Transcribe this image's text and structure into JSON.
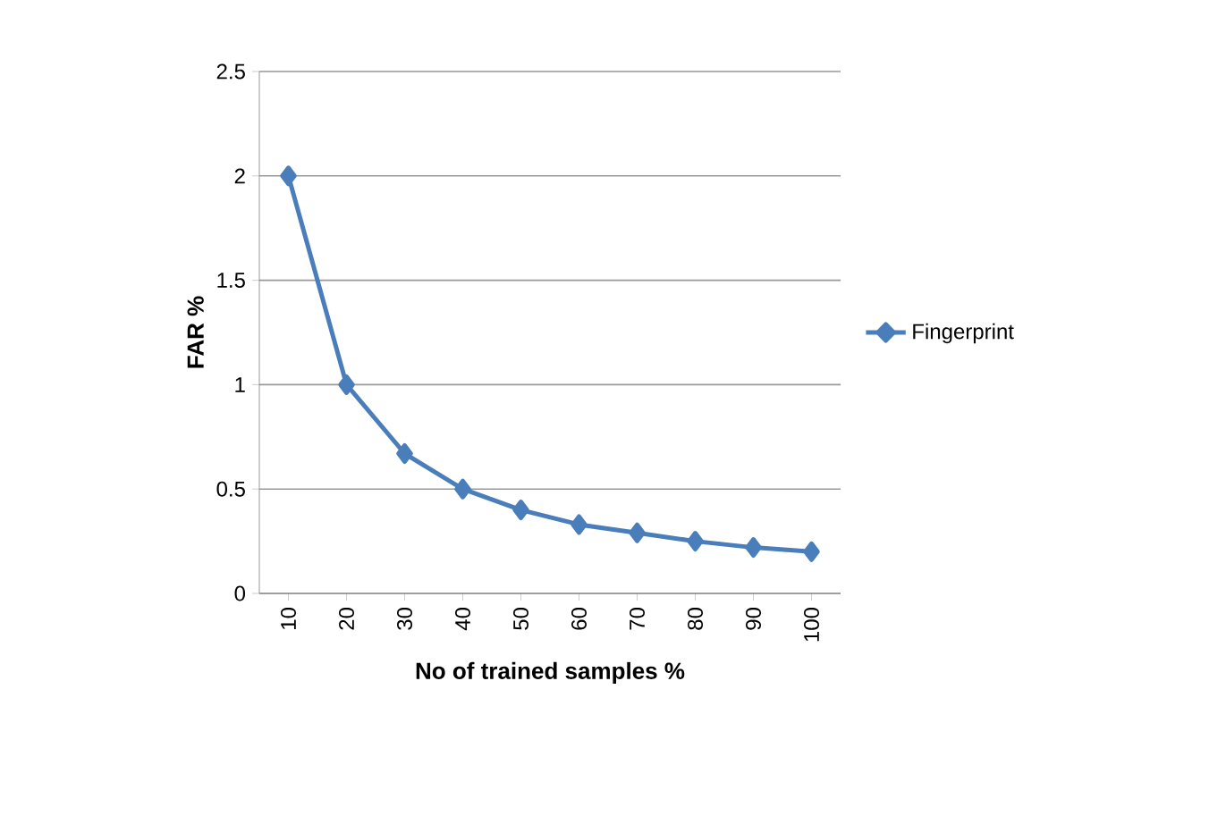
{
  "chart_data": {
    "type": "line",
    "xlabel": "No of trained samples %",
    "ylabel": "FAR %",
    "categories": [
      "10",
      "20",
      "30",
      "40",
      "50",
      "60",
      "70",
      "80",
      "90",
      "100"
    ],
    "series": [
      {
        "name": "Fingerprint",
        "color": "#4a7ebb",
        "values": [
          2,
          1,
          0.67,
          0.5,
          0.4,
          0.33,
          0.29,
          0.25,
          0.22,
          0.2
        ]
      }
    ],
    "ylim": [
      0,
      2.5
    ],
    "yticks": [
      0,
      0.5,
      1,
      1.5,
      2,
      2.5
    ],
    "grid": "y",
    "legend": "right",
    "marker": "diamond",
    "line_style": "solid"
  }
}
